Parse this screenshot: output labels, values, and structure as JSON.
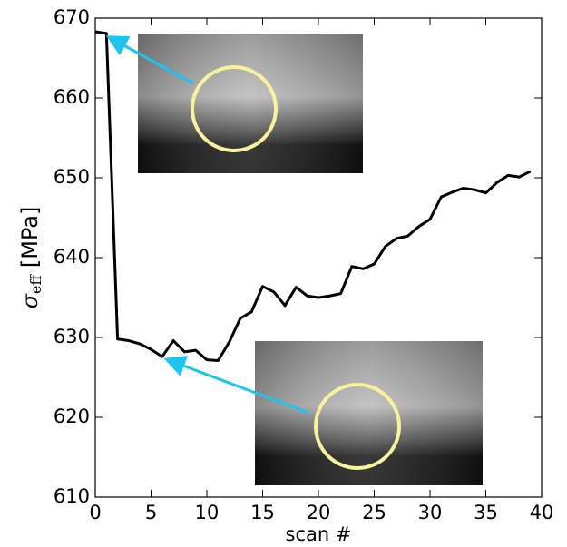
{
  "chart_data": {
    "type": "line",
    "xlabel": "scan #",
    "ylabel": {
      "symbol": "σ",
      "subscript": "eff",
      "unit": "[MPa]"
    },
    "x": [
      0,
      1,
      2,
      3,
      4,
      5,
      6,
      7,
      8,
      9,
      10,
      11,
      12,
      13,
      14,
      15,
      16,
      17,
      18,
      19,
      20,
      21,
      22,
      23,
      24,
      25,
      26,
      27,
      28,
      29,
      30,
      31,
      32,
      33,
      34,
      35,
      36,
      37,
      38,
      39
    ],
    "series": [
      {
        "color": "#000000",
        "values": [
          668.3,
          668.1,
          629.8,
          629.6,
          629.2,
          628.5,
          627.6,
          629.6,
          628.2,
          628.4,
          627.2,
          627.1,
          629.4,
          632.4,
          633.2,
          636.4,
          635.7,
          634.0,
          636.3,
          635.2,
          635.0,
          635.2,
          635.5,
          638.9,
          638.6,
          639.2,
          641.4,
          642.4,
          642.7,
          643.9,
          644.8,
          647.6,
          648.2,
          648.7,
          648.5,
          648.1,
          649.4,
          650.3,
          650.1,
          650.8
        ]
      }
    ],
    "xlim": [
      0,
      40
    ],
    "xticks": [
      0,
      5,
      10,
      15,
      20,
      25,
      30,
      35,
      40
    ],
    "ylim": [
      610,
      670
    ],
    "yticks": [
      610,
      620,
      630,
      640,
      650,
      660,
      670
    ],
    "grid": false
  }
}
